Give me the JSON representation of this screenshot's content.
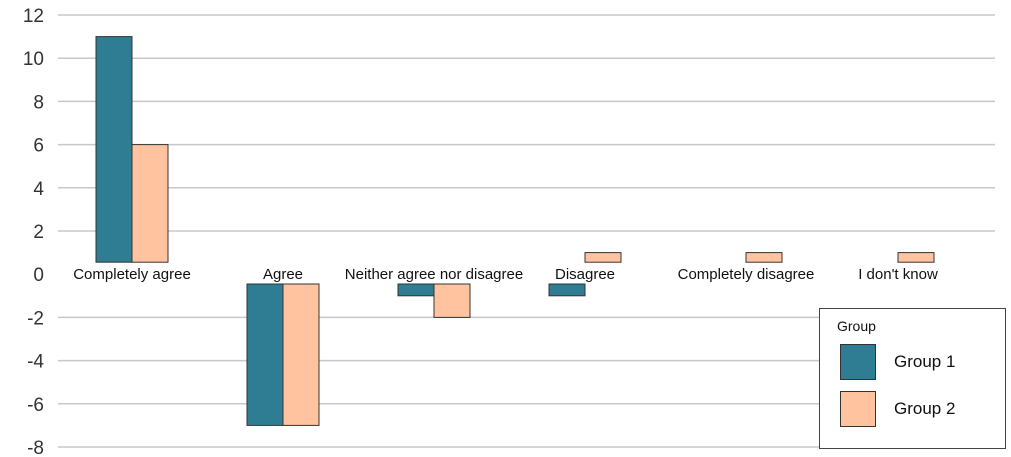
{
  "chart_data": {
    "type": "bar",
    "categories": [
      "Completely agree",
      "Agree",
      "Neither agree nor disagree",
      "Disagree",
      "Completely disagree",
      "I don't know"
    ],
    "series": [
      {
        "name": "Group 1",
        "color": "#2e7d92",
        "values": [
          11,
          -7,
          -1,
          -1,
          0,
          0
        ]
      },
      {
        "name": "Group 2",
        "color": "#ffc49f",
        "values": [
          6,
          -7,
          -2,
          1,
          1,
          1
        ]
      }
    ],
    "yticks": [
      "12",
      "10",
      "8",
      "6",
      "4",
      "2",
      "0",
      "-2",
      "-4",
      "-6",
      "-8"
    ],
    "ylim": [
      -8,
      12
    ],
    "grid": true,
    "legend": {
      "title": "Group",
      "position": "bottom-right"
    }
  }
}
